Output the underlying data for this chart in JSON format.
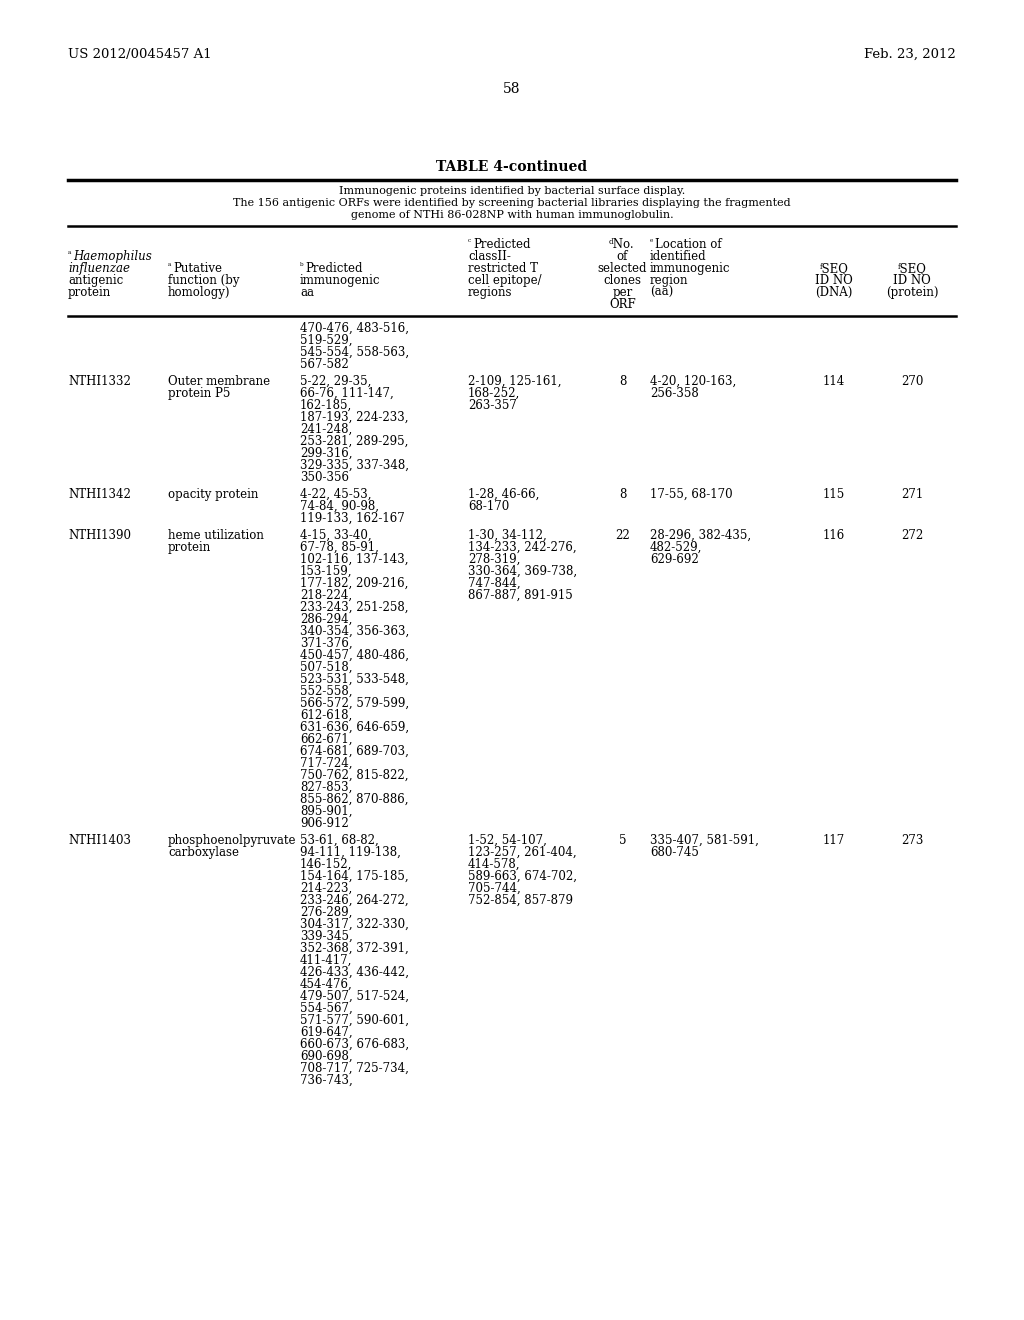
{
  "page_number": "58",
  "patent_left": "US 2012/0045457 A1",
  "patent_right": "Feb. 23, 2012",
  "table_title": "TABLE 4-continued",
  "subtitle_line1": "Immunogenic proteins identified by bacterial surface display.",
  "subtitle_line2": "The 156 antigenic ORFs were identified by screening bacterial libraries displaying the fragmented",
  "subtitle_line3": "genome of NTHi 86-028NP with human immunoglobulin.",
  "rows": [
    {
      "col0": "",
      "col1": "",
      "col2": "470-476, 483-516,\n519-529,\n545-554, 558-563,\n567-582",
      "col3": "",
      "col4": "",
      "col5": "",
      "col6": "",
      "col7": ""
    },
    {
      "col0": "NTHI1332",
      "col1": "Outer membrane\nprotein P5",
      "col2": "5-22, 29-35,\n66-76, 111-147,\n162-185,\n187-193, 224-233,\n241-248,\n253-281, 289-295,\n299-316,\n329-335, 337-348,\n350-356",
      "col3": "2-109, 125-161,\n168-252,\n263-357",
      "col4": "8",
      "col5": "4-20, 120-163,\n256-358",
      "col6": "114",
      "col7": "270"
    },
    {
      "col0": "NTHI1342",
      "col1": "opacity protein",
      "col2": "4-22, 45-53,\n74-84, 90-98,\n119-133, 162-167",
      "col3": "1-28, 46-66,\n68-170",
      "col4": "8",
      "col5": "17-55, 68-170",
      "col6": "115",
      "col7": "271"
    },
    {
      "col0": "NTHI1390",
      "col1": "heme utilization\nprotein",
      "col2": "4-15, 33-40,\n67-78, 85-91,\n102-116, 137-143,\n153-159,\n177-182, 209-216,\n218-224,\n233-243, 251-258,\n286-294,\n340-354, 356-363,\n371-376,\n450-457, 480-486,\n507-518,\n523-531, 533-548,\n552-558,\n566-572, 579-599,\n612-618,\n631-636, 646-659,\n662-671,\n674-681, 689-703,\n717-724,\n750-762, 815-822,\n827-853,\n855-862, 870-886,\n895-901,\n906-912",
      "col3": "1-30, 34-112,\n134-233, 242-276,\n278-319,\n330-364, 369-738,\n747-844,\n867-887, 891-915",
      "col4": "22",
      "col5": "28-296, 382-435,\n482-529,\n629-692",
      "col6": "116",
      "col7": "272"
    },
    {
      "col0": "NTHI1403",
      "col1": "phosphoenolpyruvate\ncarboxylase",
      "col2": "53-61, 68-82,\n94-111, 119-138,\n146-152,\n154-164, 175-185,\n214-223,\n233-246, 264-272,\n276-289,\n304-317, 322-330,\n339-345,\n352-368, 372-391,\n411-417,\n426-433, 436-442,\n454-476,\n479-507, 517-524,\n554-567,\n571-577, 590-601,\n619-647,\n660-673, 676-683,\n690-698,\n708-717, 725-734,\n736-743,",
      "col3": "1-52, 54-107,\n123-257, 261-404,\n414-578,\n589-663, 674-702,\n705-744,\n752-854, 857-879",
      "col4": "5",
      "col5": "335-407, 581-591,\n680-745",
      "col6": "117",
      "col7": "273"
    }
  ]
}
